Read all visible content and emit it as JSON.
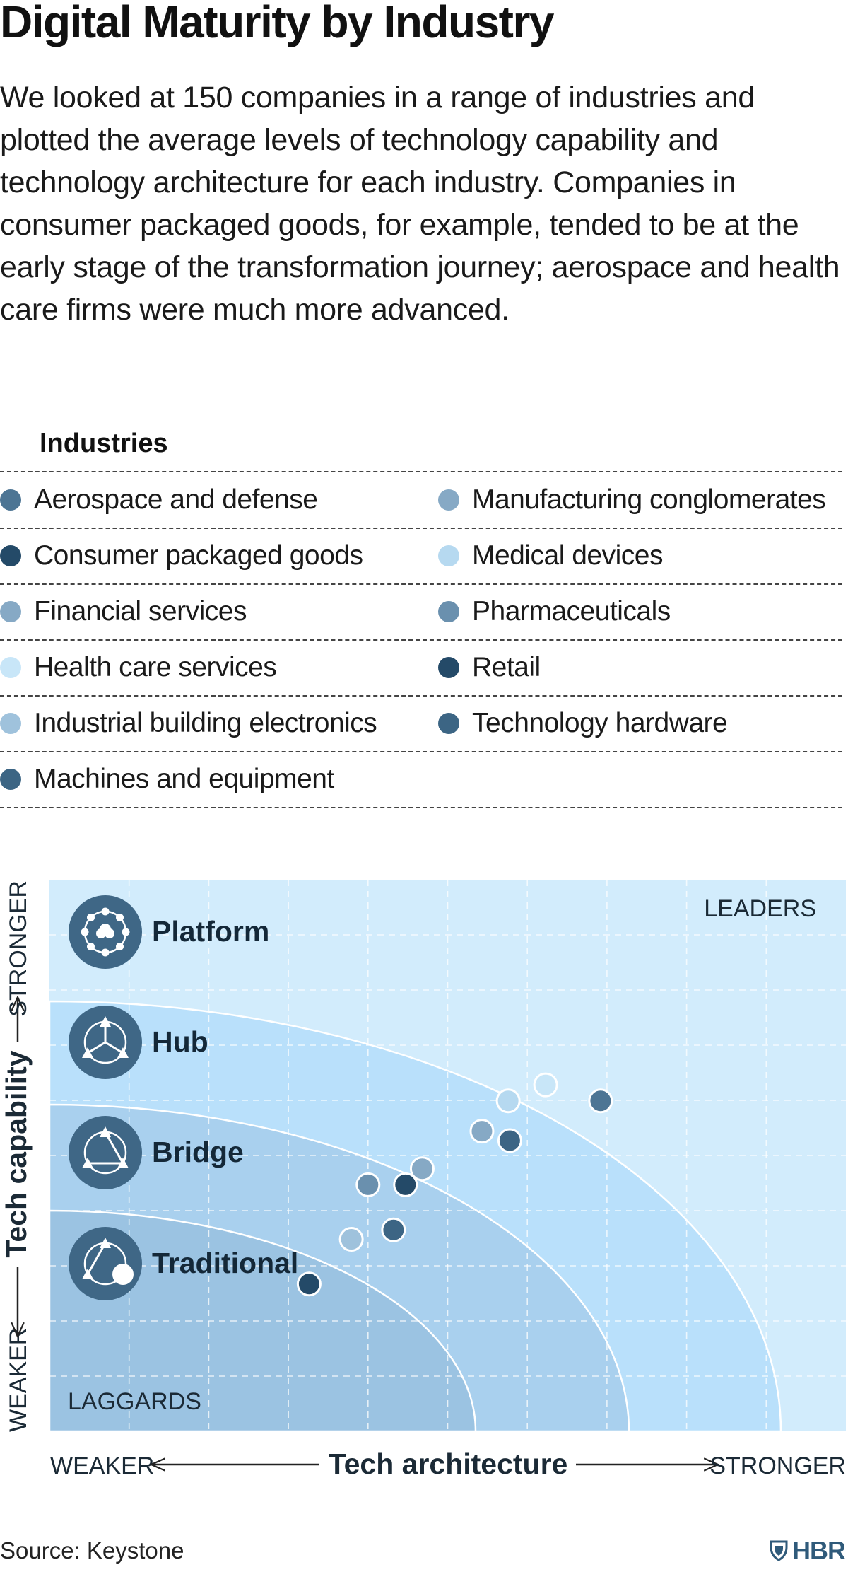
{
  "header": {
    "title": "Digital Maturity by Industry",
    "subtitle": "We looked at 150 companies in a range of industries and plotted the average levels of technology capability and technology architecture for each industry. Companies in consumer packaged goods, for example, tended to be at the early stage of the transformation journey; aerospace and health care firms were much more advanced."
  },
  "legend": {
    "title": "Industries",
    "rows": [
      [
        {
          "label": "Aerospace and defense",
          "color": "#4d7594"
        },
        {
          "label": "Manufacturing conglomerates",
          "color": "#86a9c5"
        }
      ],
      [
        {
          "label": "Consumer packaged goods",
          "color": "#244a68"
        },
        {
          "label": "Medical devices",
          "color": "#b6d9f0"
        }
      ],
      [
        {
          "label": "Financial services",
          "color": "#86a9c5"
        },
        {
          "label": "Pharmaceuticals",
          "color": "#6a90ae"
        }
      ],
      [
        {
          "label": "Health care services",
          "color": "#c8e6f8"
        },
        {
          "label": "Retail",
          "color": "#244a68"
        }
      ],
      [
        {
          "label": "Industrial building electronics",
          "color": "#9fc2dc"
        },
        {
          "label": "Technology hardware",
          "color": "#3c6584"
        }
      ],
      [
        {
          "label": "Machines and equipment",
          "color": "#3c6584"
        }
      ]
    ]
  },
  "chart_data": {
    "type": "scatter",
    "xlabel": "Tech architecture",
    "ylabel": "Tech capability",
    "x_low_label": "WEAKER",
    "x_high_label": "STRONGER",
    "y_low_label": "WEAKER",
    "y_high_label": "STRONGER",
    "corner_labels": {
      "top_right": "LEADERS",
      "bottom_left": "LAGGARDS"
    },
    "xlim": [
      0,
      10
    ],
    "ylim": [
      0,
      10
    ],
    "zones": [
      {
        "label": "Traditional",
        "color": "#9bc3e2",
        "icon": "traditional-icon"
      },
      {
        "label": "Bridge",
        "color": "#a9d0ee",
        "icon": "bridge-icon"
      },
      {
        "label": "Hub",
        "color": "#b9e0fb",
        "icon": "hub-icon"
      },
      {
        "label": "Platform",
        "color": "#d2ecfc",
        "icon": "platform-icon"
      }
    ],
    "points": [
      {
        "x": 3.26,
        "y": 2.67,
        "color": "#244a68"
      },
      {
        "x": 3.79,
        "y": 3.48,
        "color": "#9fc2dc"
      },
      {
        "x": 4.0,
        "y": 4.47,
        "color": "#6a90ae"
      },
      {
        "x": 4.32,
        "y": 3.65,
        "color": "#3c6584"
      },
      {
        "x": 4.47,
        "y": 4.47,
        "color": "#244a68"
      },
      {
        "x": 4.68,
        "y": 4.76,
        "color": "#86a9c5"
      },
      {
        "x": 5.43,
        "y": 5.44,
        "color": "#86a9c5"
      },
      {
        "x": 5.78,
        "y": 5.27,
        "color": "#3c6584"
      },
      {
        "x": 5.76,
        "y": 5.99,
        "color": "#b6d9f0"
      },
      {
        "x": 6.23,
        "y": 6.28,
        "color": "#c8e6f8"
      },
      {
        "x": 6.92,
        "y": 5.99,
        "color": "#4d7594"
      }
    ]
  },
  "footer": {
    "source": "Source: Keystone",
    "brand": "HBR"
  }
}
